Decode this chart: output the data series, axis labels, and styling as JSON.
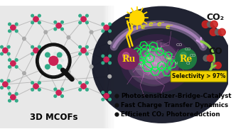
{
  "background_color": "#ffffff",
  "left_label": "3D MCOFs",
  "bullet_points": [
    "Photosensitizer-Bridge-Catalyst",
    "Fast Charge Transfer Dynamics",
    "Efficient CO₂ Photoreduction"
  ],
  "selectivity_text": "Selectivity > 97%",
  "selectivity_bg": "#f0d000",
  "co2_label": "CO₂",
  "co_label": "CO",
  "ru_label": "Ru",
  "re_label": "Re",
  "fig_width": 3.49,
  "fig_height": 1.89,
  "dpi": 100,
  "dark_bg": "#0d1020",
  "glow_purple": "#cc33cc",
  "glow_white": "#ffffff",
  "ru_color": "#7a2560",
  "re_color": "#1e7a40",
  "mol_color": "#00ff44",
  "sun_color": "#FFD700",
  "arrow_color": "#aa88bb",
  "electron_color": "#dddd00",
  "text_color": "#000000",
  "bullet_fontsize": 6.2,
  "label_fontsize": 8.5,
  "node_red": "#cc2255",
  "node_teal": "#33aa88",
  "node_gray": "#aaaaaa",
  "bond_color": "#b0b0b0",
  "framework_bg": "#d8d8d8"
}
